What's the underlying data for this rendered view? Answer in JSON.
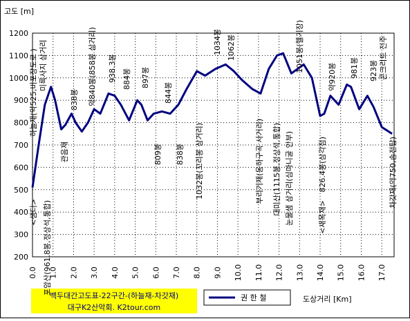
{
  "chart_data": {
    "type": "line",
    "title": "백두대간고도표-22구간-(하늘재-차갓재)",
    "subtitle": "대구K2산악회. K2tour.com",
    "y_label": "고도 [m]",
    "x_label": "도상거리 [Km]",
    "series": [
      {
        "name": "권 한 철",
        "color": "#000080",
        "x": [
          0.0,
          0.3,
          0.6,
          0.9,
          1.1,
          1.4,
          1.6,
          1.9,
          2.1,
          2.4,
          2.7,
          3.0,
          3.3,
          3.7,
          4.0,
          4.3,
          4.7,
          5.1,
          5.3,
          5.6,
          5.9,
          6.3,
          6.7,
          7.1,
          7.5,
          8.0,
          8.4,
          8.9,
          9.4,
          9.8,
          10.2,
          10.7,
          11.1,
          11.5,
          11.9,
          12.2,
          12.6,
          12.9,
          13.2,
          13.6,
          14.0,
          14.2,
          14.5,
          14.9,
          15.3,
          15.5,
          15.9,
          16.3,
          16.6,
          17.0,
          17.5
        ],
        "values": [
          510,
          700,
          880,
          960,
          900,
          770,
          790,
          840,
          800,
          760,
          800,
          860,
          840,
          930,
          920,
          880,
          810,
          900,
          880,
          810,
          840,
          850,
          840,
          880,
          950,
          1030,
          1010,
          1040,
          1060,
          1030,
          990,
          950,
          930,
          1040,
          1100,
          1110,
          1020,
          1040,
          1060,
          1000,
          830,
          840,
          920,
          880,
          970,
          960,
          860,
          920,
          870,
          780,
          750
        ]
      }
    ],
    "annotations": [
      "하늘재(약525,비포장도로 )",
      "미륵사지 삼거리",
      "838봉",
      "약840봉(858봉 삼거리)",
      "938.3봉",
      "884봉",
      "897봉",
      "844봉",
      "1034봉",
      "1062봉",
      "1051봉(헬기장)",
      "약920봉",
      "981봉",
      "923봉",
      "콘크리트 전주",
      "<샘터>",
      "포암산(961.8봉,정상석,통합)",
      "관음재",
      "809봉",
      "838봉",
      "1032봉(꼬리봉 삼거리)",
      "부리기재(옹하구곡 사거리)",
      "대미산(1115봉,정상석,통합)",
      "눈물샘 삼거리(심마니굴 안부)",
      "826.4봉(삼각점)",
      "<새목재>",
      "차갓재(약750,송전탑)"
    ],
    "xlim": [
      0,
      17.6
    ],
    "ylim": [
      200,
      1200
    ],
    "xticks": [
      {
        "value": 0,
        "label": "0.0"
      },
      {
        "value": 1,
        "label": "1.0"
      },
      {
        "value": 2,
        "label": "2.0"
      },
      {
        "value": 3,
        "label": "3.0"
      },
      {
        "value": 4,
        "label": "4.0"
      },
      {
        "value": 5,
        "label": "5.0"
      },
      {
        "value": 6,
        "label": "6.0"
      },
      {
        "value": 7,
        "label": "7.0"
      },
      {
        "value": 8,
        "label": "8.0"
      },
      {
        "value": 9,
        "label": "9.0"
      },
      {
        "value": 10,
        "label": "10.0"
      },
      {
        "value": 11,
        "label": "11.0"
      },
      {
        "value": 12,
        "label": "12.0"
      },
      {
        "value": 13,
        "label": "13.0"
      },
      {
        "value": 14,
        "label": "14.0"
      },
      {
        "value": 15,
        "label": "15.0"
      },
      {
        "value": 16,
        "label": "16.0"
      },
      {
        "value": 17,
        "label": "17.0"
      }
    ],
    "yticks": [
      200,
      300,
      400,
      500,
      600,
      700,
      800,
      900,
      1000,
      1100,
      1200
    ],
    "grid": true
  }
}
